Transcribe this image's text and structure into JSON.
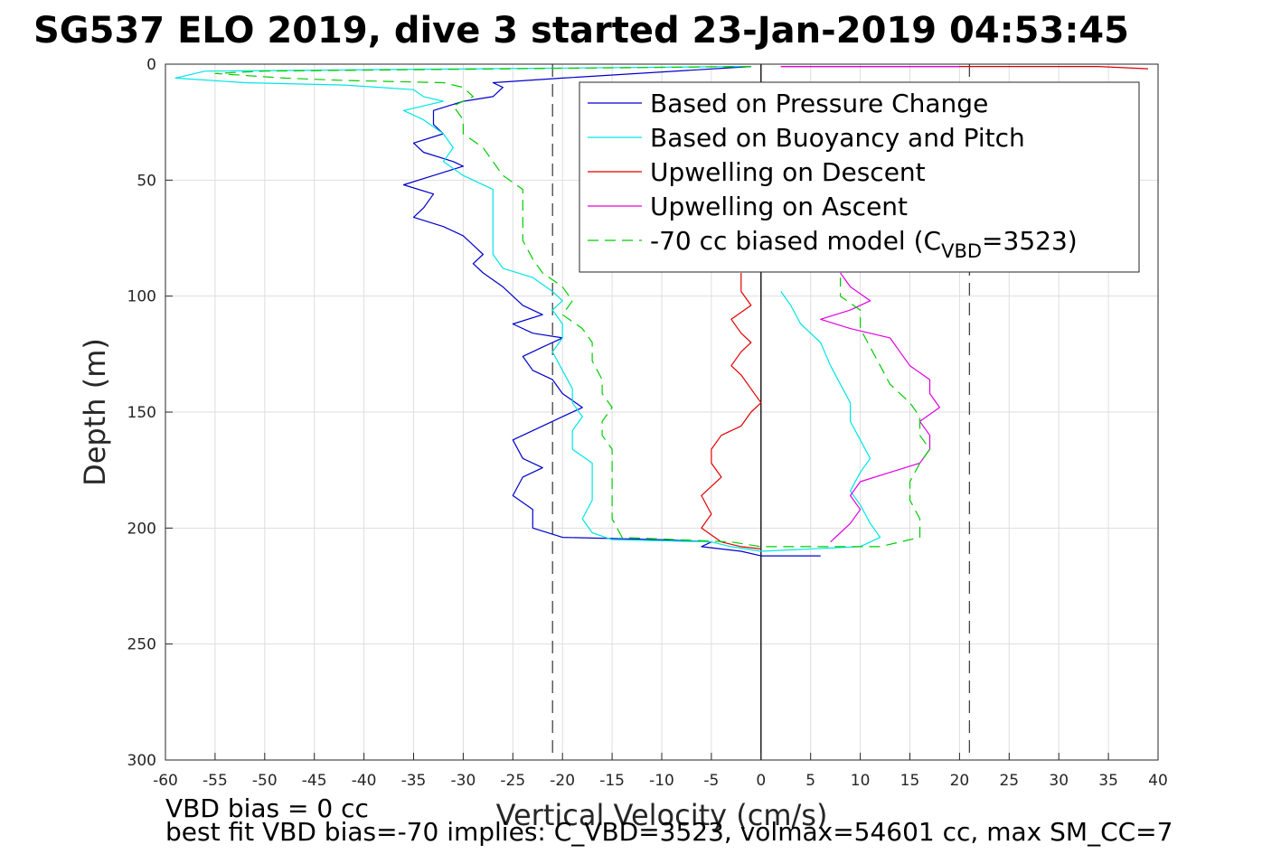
{
  "chart_data": {
    "type": "line",
    "title": "SG537 ELO 2019, dive 3 started 23-Jan-2019 04:53:45",
    "xlabel": "Vertical Velocity (cm/s)",
    "ylabel": "Depth (m)",
    "xlim": [
      -60,
      40
    ],
    "ylim": [
      0,
      300
    ],
    "y_reversed": true,
    "grid": true,
    "legend_position": "top-right",
    "xticks": [
      -60,
      -55,
      -50,
      -45,
      -40,
      -35,
      -30,
      -25,
      -20,
      -15,
      -10,
      -5,
      0,
      5,
      10,
      15,
      20,
      25,
      30,
      35,
      40
    ],
    "xtick_labels": [
      "-60",
      "-55",
      "-50",
      "-45",
      "-40",
      "-35",
      "-30",
      "-25",
      "-20",
      "-15",
      "-10",
      "-5",
      "0",
      "5",
      "10",
      "15",
      "20",
      "25",
      "30",
      "35",
      "40"
    ],
    "yticks": [
      0,
      50,
      100,
      150,
      200,
      250,
      300
    ],
    "ytick_labels": [
      "0",
      "50",
      "100",
      "150",
      "200",
      "250",
      "300"
    ],
    "reference_lines": [
      {
        "style": "solid",
        "color": "#000000",
        "x": 0
      },
      {
        "style": "dashed",
        "color": "#444444",
        "x": -21
      },
      {
        "style": "dashed",
        "color": "#444444",
        "x": 21
      }
    ],
    "series": [
      {
        "name": "Based on Pressure Change",
        "color": "#0000cc",
        "dash": false,
        "points": [
          [
            -1,
            1
          ],
          [
            -20,
            6
          ],
          [
            -27,
            8
          ],
          [
            -26,
            10
          ],
          [
            -27,
            14
          ],
          [
            -30,
            16
          ],
          [
            -33,
            20
          ],
          [
            -33,
            26
          ],
          [
            -32,
            30
          ],
          [
            -35,
            34
          ],
          [
            -34,
            38
          ],
          [
            -31,
            42
          ],
          [
            -30,
            44
          ],
          [
            -33,
            48
          ],
          [
            -36,
            52
          ],
          [
            -33,
            56
          ],
          [
            -34,
            62
          ],
          [
            -35,
            66
          ],
          [
            -32,
            70
          ],
          [
            -30,
            74
          ],
          [
            -29,
            78
          ],
          [
            -28,
            82
          ],
          [
            -29,
            86
          ],
          [
            -28,
            90
          ],
          [
            -26,
            96
          ],
          [
            -25,
            100
          ],
          [
            -24,
            104
          ],
          [
            -22,
            108
          ],
          [
            -25,
            112
          ],
          [
            -23,
            116
          ],
          [
            -20,
            118
          ],
          [
            -22,
            122
          ],
          [
            -24,
            126
          ],
          [
            -23,
            132
          ],
          [
            -21,
            136
          ],
          [
            -20,
            142
          ],
          [
            -18,
            148
          ],
          [
            -20,
            152
          ],
          [
            -22,
            156
          ],
          [
            -25,
            162
          ],
          [
            -24,
            170
          ],
          [
            -22,
            174
          ],
          [
            -24,
            178
          ],
          [
            -25,
            186
          ],
          [
            -23,
            192
          ],
          [
            -23,
            200
          ],
          [
            -20,
            204
          ],
          [
            -10,
            205
          ],
          [
            -5,
            206
          ],
          [
            -6,
            208
          ],
          [
            -2,
            210
          ],
          [
            0,
            212
          ],
          [
            6,
            212
          ]
        ]
      },
      {
        "name": "Based on Buoyancy and Pitch",
        "color": "#00e5e5",
        "dash": false,
        "points": [
          [
            -2,
            1
          ],
          [
            -56,
            3
          ],
          [
            -59,
            6
          ],
          [
            -52,
            8
          ],
          [
            -42,
            9
          ],
          [
            -35,
            11
          ],
          [
            -34,
            14
          ],
          [
            -32,
            16
          ],
          [
            -36,
            20
          ],
          [
            -34,
            24
          ],
          [
            -32,
            30
          ],
          [
            -31,
            36
          ],
          [
            -32,
            42
          ],
          [
            -30,
            48
          ],
          [
            -27,
            54
          ],
          [
            -27,
            60
          ],
          [
            -27,
            66
          ],
          [
            -27,
            74
          ],
          [
            -27,
            82
          ],
          [
            -26,
            88
          ],
          [
            -23,
            92
          ],
          [
            -21,
            98
          ],
          [
            -20,
            102
          ],
          [
            -21,
            106
          ],
          [
            -20,
            112
          ],
          [
            -20,
            118
          ],
          [
            -21,
            124
          ],
          [
            -20,
            132
          ],
          [
            -19,
            140
          ],
          [
            -19,
            146
          ],
          [
            -18,
            152
          ],
          [
            -19,
            158
          ],
          [
            -19,
            166
          ],
          [
            -17,
            172
          ],
          [
            -17,
            180
          ],
          [
            -17,
            188
          ],
          [
            -18,
            196
          ],
          [
            -17,
            202
          ],
          [
            -15,
            205
          ],
          [
            -5,
            206
          ],
          [
            -3,
            208
          ],
          [
            0,
            210
          ],
          [
            10,
            208
          ],
          [
            12,
            204
          ],
          [
            11,
            198
          ],
          [
            10,
            190
          ],
          [
            9,
            184
          ],
          [
            10,
            176
          ],
          [
            11,
            170
          ],
          [
            10,
            162
          ],
          [
            9,
            154
          ],
          [
            9,
            146
          ],
          [
            8,
            138
          ],
          [
            7,
            130
          ],
          [
            6,
            120
          ],
          [
            4,
            112
          ],
          [
            3,
            104
          ],
          [
            2,
            98
          ]
        ]
      },
      {
        "name": "Upwelling on Descent",
        "color": "#e00000",
        "dash": false,
        "points": [
          [
            39,
            2
          ],
          [
            34,
            1
          ],
          [
            30,
            1
          ],
          [
            20,
            1
          ],
          [
            15,
            1
          ],
          [
            5,
            1
          ],
          [
            2,
            1
          ],
          [
            null,
            null
          ],
          [
            -2,
            90
          ],
          [
            -2,
            98
          ],
          [
            -1,
            104
          ],
          [
            -3,
            110
          ],
          [
            -2,
            116
          ],
          [
            -1,
            120
          ],
          [
            -2,
            124
          ],
          [
            -3,
            130
          ],
          [
            -2,
            134
          ],
          [
            -1,
            140
          ],
          [
            0,
            146
          ],
          [
            -1,
            150
          ],
          [
            -2,
            156
          ],
          [
            -4,
            160
          ],
          [
            -5,
            166
          ],
          [
            -5,
            172
          ],
          [
            -4,
            178
          ],
          [
            -6,
            186
          ],
          [
            -5,
            194
          ],
          [
            -6,
            200
          ],
          [
            -4,
            206
          ],
          [
            -2,
            208
          ],
          [
            0,
            209
          ]
        ]
      },
      {
        "name": "Upwelling on Ascent",
        "color": "#e000e0",
        "dash": false,
        "points": [
          [
            2,
            1
          ],
          [
            8,
            1
          ],
          [
            15,
            1
          ],
          [
            20,
            1
          ],
          [
            null,
            null
          ],
          [
            8,
            90
          ],
          [
            9,
            96
          ],
          [
            11,
            102
          ],
          [
            9,
            106
          ],
          [
            6,
            110
          ],
          [
            9,
            114
          ],
          [
            13,
            118
          ],
          [
            14,
            124
          ],
          [
            15,
            130
          ],
          [
            17,
            136
          ],
          [
            17,
            142
          ],
          [
            18,
            148
          ],
          [
            16,
            154
          ],
          [
            17,
            160
          ],
          [
            17,
            166
          ],
          [
            16,
            172
          ],
          [
            13,
            176
          ],
          [
            10,
            180
          ],
          [
            9,
            186
          ],
          [
            10,
            192
          ],
          [
            9,
            198
          ],
          [
            8,
            202
          ],
          [
            7,
            206
          ]
        ]
      },
      {
        "name": "-70 cc biased model (C_VBD=3523)",
        "color": "#00cc00",
        "dash": true,
        "points": [
          [
            -1,
            1
          ],
          [
            -50,
            3
          ],
          [
            -55,
            4
          ],
          [
            -48,
            6
          ],
          [
            -42,
            7
          ],
          [
            -32,
            8
          ],
          [
            -30,
            10
          ],
          [
            -29,
            14
          ],
          [
            -31,
            18
          ],
          [
            -30,
            24
          ],
          [
            -30,
            30
          ],
          [
            -28,
            36
          ],
          [
            -27,
            42
          ],
          [
            -26,
            48
          ],
          [
            -24,
            54
          ],
          [
            -24,
            60
          ],
          [
            -24,
            68
          ],
          [
            -24,
            76
          ],
          [
            -23,
            84
          ],
          [
            -22,
            90
          ],
          [
            -20,
            96
          ],
          [
            -19,
            102
          ],
          [
            -20,
            108
          ],
          [
            -18,
            114
          ],
          [
            -17,
            120
          ],
          [
            -17,
            128
          ],
          [
            -16,
            136
          ],
          [
            -16,
            142
          ],
          [
            -15,
            148
          ],
          [
            -16,
            154
          ],
          [
            -16,
            160
          ],
          [
            -15,
            166
          ],
          [
            -15,
            172
          ],
          [
            -15,
            180
          ],
          [
            -15,
            188
          ],
          [
            -15,
            196
          ],
          [
            -14,
            204
          ],
          [
            -3,
            206
          ],
          [
            0,
            208
          ],
          [
            5,
            208
          ],
          [
            12,
            208
          ],
          [
            16,
            204
          ],
          [
            16,
            196
          ],
          [
            15,
            188
          ],
          [
            15,
            180
          ],
          [
            16,
            172
          ],
          [
            17,
            166
          ],
          [
            16,
            160
          ],
          [
            16,
            152
          ],
          [
            15,
            146
          ],
          [
            13,
            138
          ],
          [
            12,
            130
          ],
          [
            11,
            122
          ],
          [
            10,
            114
          ],
          [
            10,
            106
          ],
          [
            8,
            100
          ],
          [
            8,
            92
          ]
        ]
      }
    ],
    "legend": [
      {
        "label": "Based on Pressure Change",
        "color": "#0000cc",
        "dash": false
      },
      {
        "label": "Based on Buoyancy and Pitch",
        "color": "#00e5e5",
        "dash": false
      },
      {
        "label": "Upwelling on Descent",
        "color": "#e00000",
        "dash": false
      },
      {
        "label": "Upwelling on Ascent",
        "color": "#e000e0",
        "dash": false
      },
      {
        "label": "-70 cc biased model (C_VBD=3523)",
        "color": "#00cc00",
        "dash": true
      }
    ],
    "legend_rich": {
      "last_prefix": "-70 cc biased model (C",
      "last_sub": "VBD",
      "last_suffix": "=3523)"
    },
    "footer": [
      "VBD bias = 0 cc",
      "best fit VBD bias=-70 implies: C_VBD=3523, volmax=54601 cc, max SM_CC=7"
    ]
  }
}
